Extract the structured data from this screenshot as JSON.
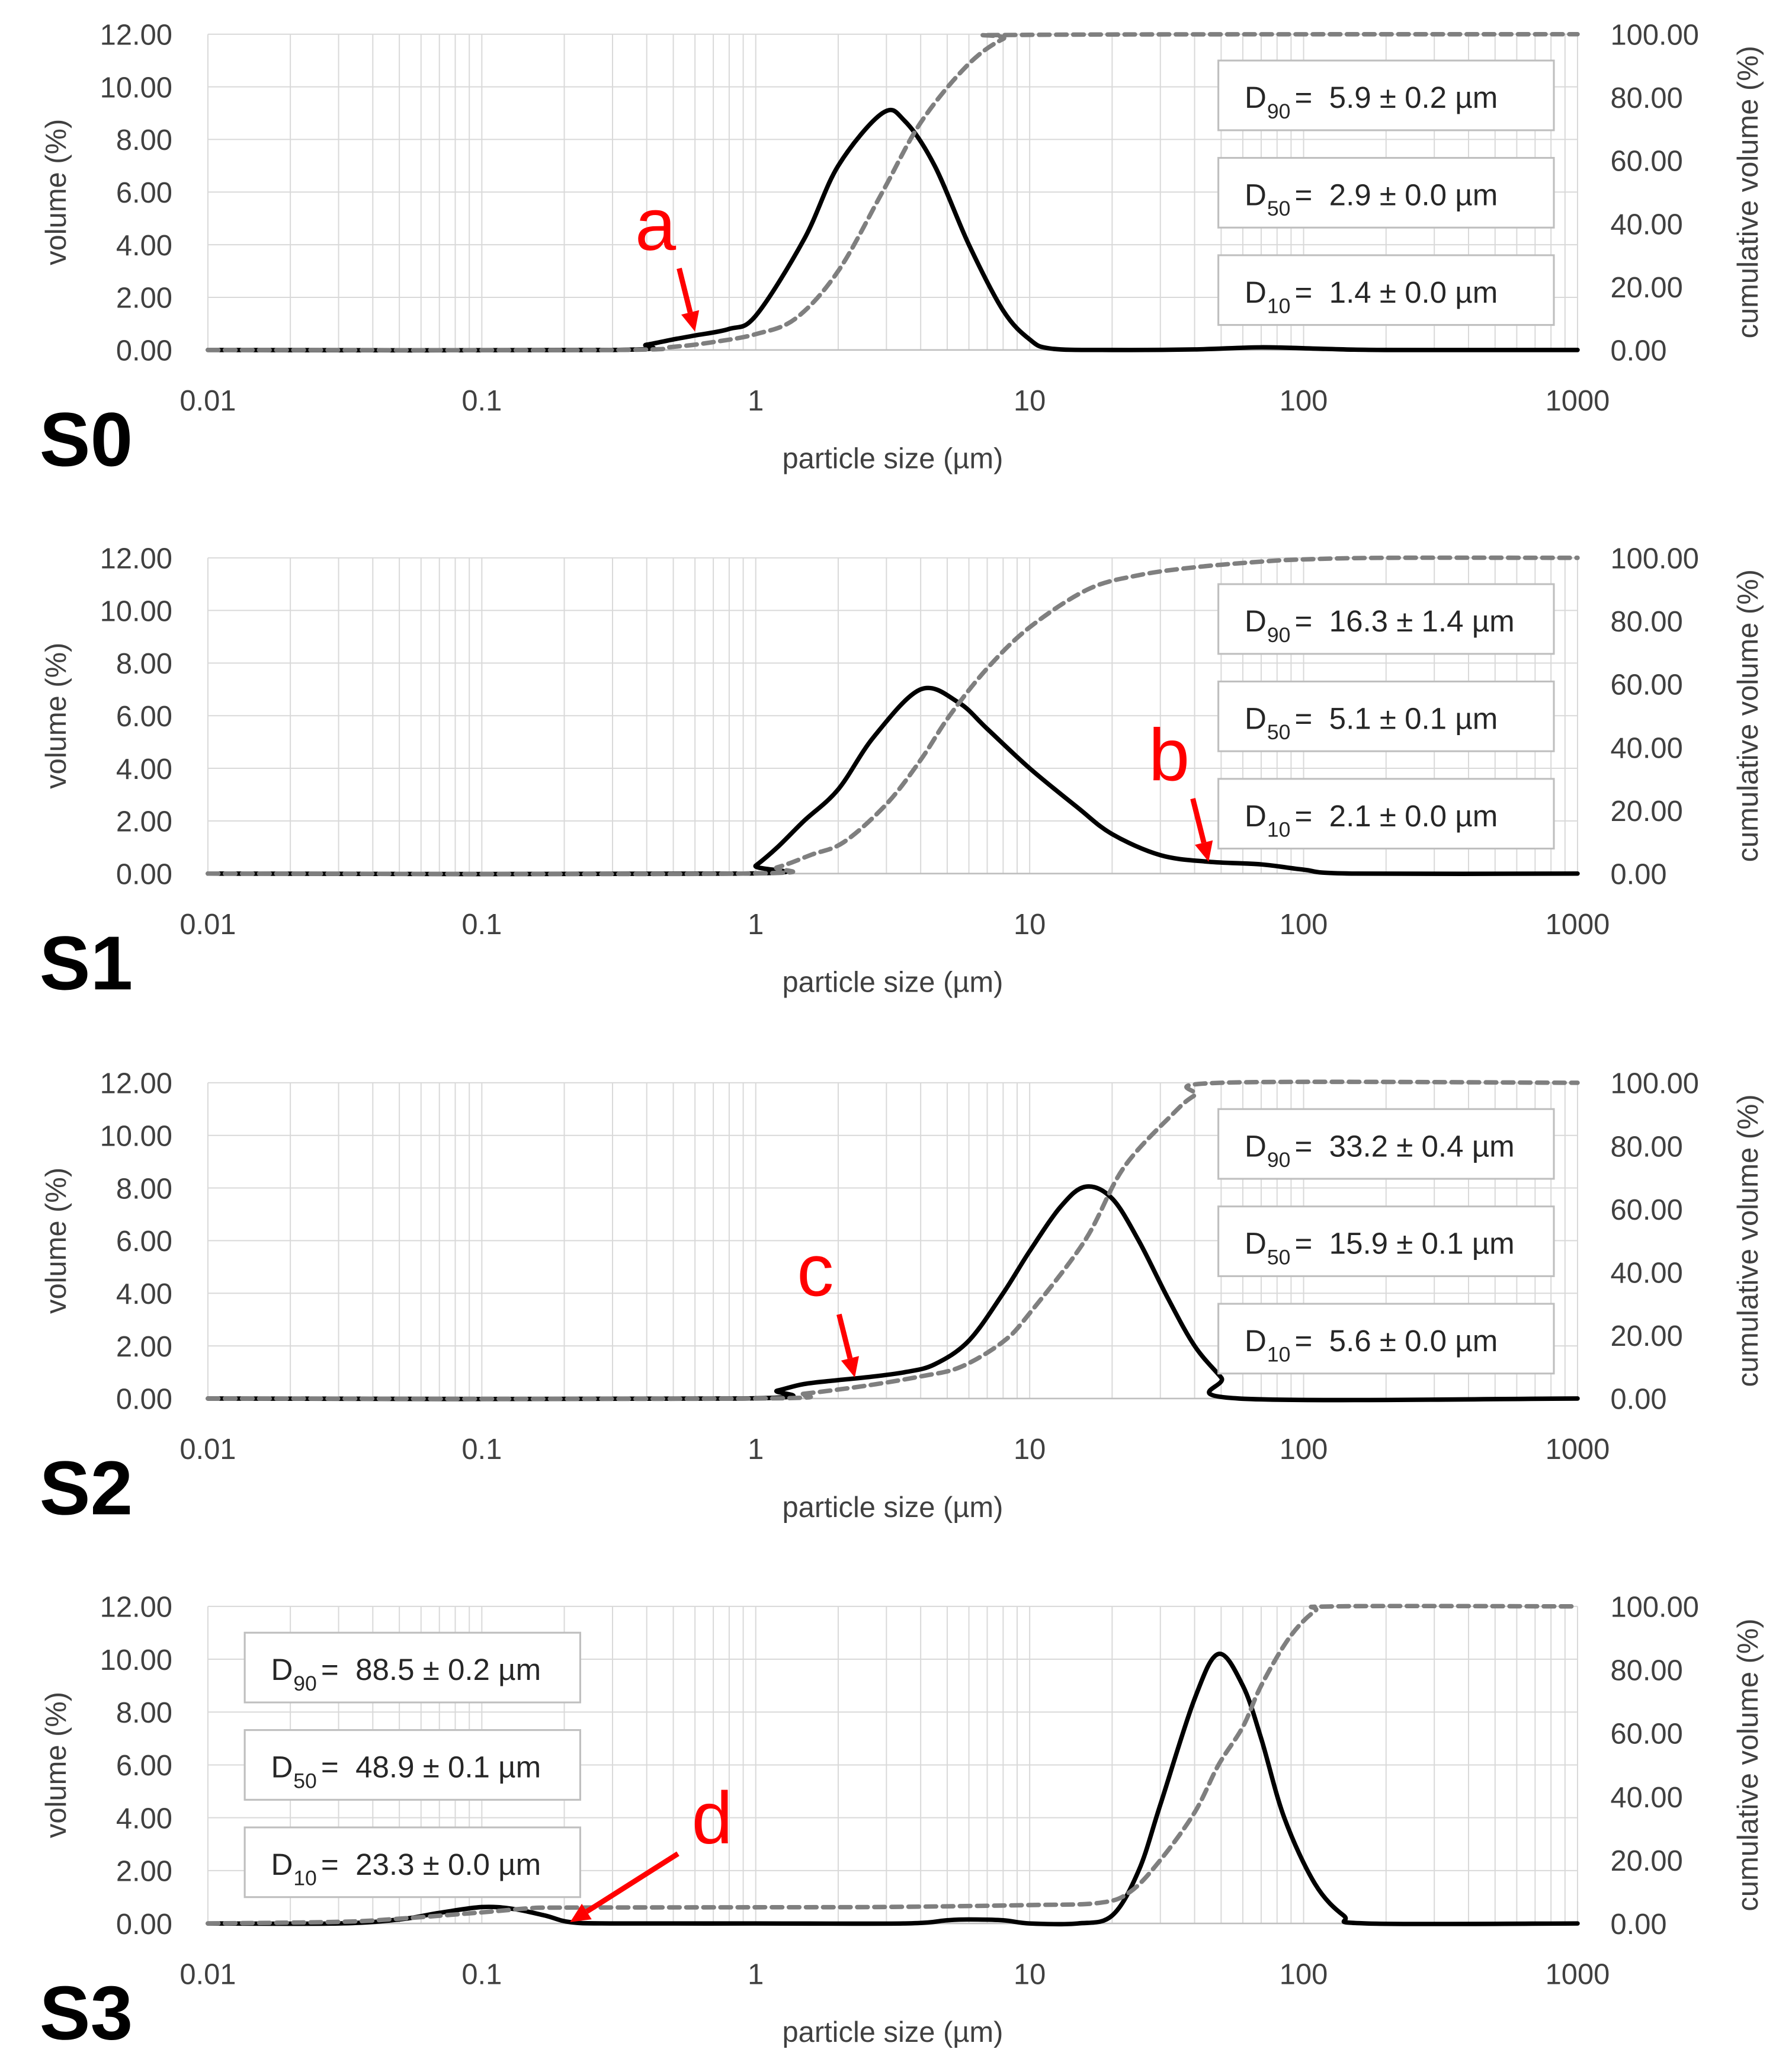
{
  "chart_data": [
    {
      "type": "line",
      "panel_label": "S0",
      "xlabel": "particle size (µm)",
      "ylabel_left": "volume (%)",
      "ylabel_right": "cumulative volume (%)",
      "x_scale": "log",
      "xlim": [
        0.01,
        1000
      ],
      "ylim_left": [
        0,
        12
      ],
      "ylim_right": [
        0,
        100
      ],
      "x_ticks": [
        "0.01",
        "0.1",
        "1",
        "10",
        "100",
        "1000"
      ],
      "y_ticks_left": [
        "0.00",
        "2.00",
        "4.00",
        "6.00",
        "8.00",
        "10.00",
        "12.00"
      ],
      "y_ticks_right": [
        "0.00",
        "20.00",
        "40.00",
        "60.00",
        "80.00",
        "100.00"
      ],
      "grid": true,
      "stats_placement": "right",
      "stats": [
        {
          "sub": "90",
          "text": "=  5.9 ± 0.2 µm"
        },
        {
          "sub": "50",
          "text": "=  2.9 ± 0.0 µm"
        },
        {
          "sub": "10",
          "text": "=  1.4 ± 0.0 µm"
        }
      ],
      "annotation": {
        "label": "a",
        "x": 0.6,
        "y": 0.7
      },
      "series": [
        {
          "style": "solid",
          "axis": "left",
          "x": [
            0.01,
            0.3,
            0.4,
            0.5,
            0.6,
            0.8,
            1.0,
            1.5,
            2.0,
            2.9,
            3.5,
            4.5,
            6.0,
            8.0,
            10.0,
            12.0,
            20.0,
            40.0,
            70.0,
            120.0,
            200.0,
            1000.0
          ],
          "y": [
            0,
            0,
            0.2,
            0.4,
            0.55,
            0.8,
            1.3,
            4.2,
            7.0,
            9.0,
            8.7,
            7.0,
            4.0,
            1.5,
            0.4,
            0.05,
            0,
            0.02,
            0.1,
            0.04,
            0,
            0
          ]
        },
        {
          "style": "dashed",
          "axis": "right",
          "x": [
            0.01,
            0.3,
            0.5,
            0.7,
            1.0,
            1.4,
            2.0,
            2.9,
            4.0,
            5.9,
            8.0,
            10.0,
            1000.0
          ],
          "y": [
            0,
            0,
            1.0,
            2.5,
            5.0,
            10.0,
            25.0,
            50.0,
            72.0,
            90.0,
            98.5,
            99.8,
            100
          ]
        }
      ]
    },
    {
      "type": "line",
      "panel_label": "S1",
      "xlabel": "particle size (µm)",
      "ylabel_left": "volume (%)",
      "ylabel_right": "cumulative volume (%)",
      "x_scale": "log",
      "xlim": [
        0.01,
        1000
      ],
      "ylim_left": [
        0,
        12
      ],
      "ylim_right": [
        0,
        100
      ],
      "x_ticks": [
        "0.01",
        "0.1",
        "1",
        "10",
        "100",
        "1000"
      ],
      "y_ticks_left": [
        "0.00",
        "2.00",
        "4.00",
        "6.00",
        "8.00",
        "10.00",
        "12.00"
      ],
      "y_ticks_right": [
        "0.00",
        "20.00",
        "40.00",
        "60.00",
        "80.00",
        "100.00"
      ],
      "grid": true,
      "stats_placement": "right",
      "stats": [
        {
          "sub": "90",
          "text": "=  16.3 ± 1.4 µm"
        },
        {
          "sub": "50",
          "text": "=  5.1 ± 0.1 µm"
        },
        {
          "sub": "10",
          "text": "=  2.1 ± 0.0 µm"
        }
      ],
      "annotation": {
        "label": "b",
        "x": 45,
        "y": 0.45
      },
      "series": [
        {
          "style": "solid",
          "axis": "left",
          "x": [
            0.01,
            0.9,
            1.0,
            1.2,
            1.5,
            2.0,
            2.7,
            4.0,
            5.5,
            7.0,
            10.0,
            15.0,
            20.0,
            30.0,
            45.0,
            70.0,
            100.0,
            150.0,
            1000.0
          ],
          "y": [
            0,
            0,
            0.3,
            1.0,
            2.0,
            3.2,
            5.2,
            7.0,
            6.5,
            5.5,
            4.0,
            2.5,
            1.5,
            0.7,
            0.45,
            0.35,
            0.15,
            0,
            0
          ]
        },
        {
          "style": "dashed",
          "axis": "right",
          "x": [
            0.01,
            0.9,
            1.2,
            1.6,
            2.1,
            3.0,
            4.0,
            5.1,
            7.0,
            10.0,
            16.3,
            25.0,
            40.0,
            70.0,
            100.0,
            200.0,
            1000.0
          ],
          "y": [
            0,
            0,
            2.0,
            6.0,
            10.0,
            22.0,
            36.0,
            50.0,
            65.0,
            78.0,
            90.0,
            94.5,
            97.0,
            98.8,
            99.5,
            100,
            100
          ]
        }
      ]
    },
    {
      "type": "line",
      "panel_label": "S2",
      "xlabel": "particle size (µm)",
      "ylabel_left": "volume (%)",
      "ylabel_right": "cumulative volume (%)",
      "x_scale": "log",
      "xlim": [
        0.01,
        1000
      ],
      "ylim_left": [
        0,
        12
      ],
      "ylim_right": [
        0,
        100
      ],
      "x_ticks": [
        "0.01",
        "0.1",
        "1",
        "10",
        "100",
        "1000"
      ],
      "y_ticks_left": [
        "0.00",
        "2.00",
        "4.00",
        "6.00",
        "8.00",
        "10.00",
        "12.00"
      ],
      "y_ticks_right": [
        "0.00",
        "20.00",
        "40.00",
        "60.00",
        "80.00",
        "100.00"
      ],
      "grid": true,
      "stats_placement": "right",
      "stats": [
        {
          "sub": "90",
          "text": "=  33.2 ± 0.4 µm"
        },
        {
          "sub": "50",
          "text": "=  15.9 ± 0.1 µm"
        },
        {
          "sub": "10",
          "text": "=  5.6 ± 0.0 µm"
        }
      ],
      "annotation": {
        "label": "c",
        "x": 2.3,
        "y": 0.8
      },
      "series": [
        {
          "style": "solid",
          "axis": "left",
          "x": [
            0.01,
            0.9,
            1.2,
            1.5,
            2.0,
            2.5,
            3.5,
            4.5,
            6.0,
            8.0,
            10.0,
            13.0,
            16.0,
            20.0,
            25.0,
            32.0,
            40.0,
            50.0,
            58.0,
            1000.0
          ],
          "y": [
            0,
            0,
            0.3,
            0.55,
            0.7,
            0.8,
            1.0,
            1.3,
            2.2,
            4.0,
            5.6,
            7.3,
            8.05,
            7.6,
            6.0,
            3.8,
            2.0,
            0.8,
            0,
            0
          ]
        },
        {
          "style": "dashed",
          "axis": "right",
          "x": [
            0.01,
            1.0,
            1.5,
            2.5,
            4.0,
            5.6,
            8.0,
            10.0,
            15.9,
            22.0,
            33.2,
            40.0,
            50.0,
            1000.0
          ],
          "y": [
            0,
            0,
            1.5,
            4.0,
            7.0,
            10.0,
            18.0,
            27.0,
            50.0,
            73.0,
            90.0,
            96.0,
            100,
            100
          ]
        }
      ]
    },
    {
      "type": "line",
      "panel_label": "S3",
      "xlabel": "particle size (µm)",
      "ylabel_left": "volume (%)",
      "ylabel_right": "cumulative volume (%)",
      "x_scale": "log",
      "xlim": [
        0.01,
        1000
      ],
      "ylim_left": [
        0,
        12
      ],
      "ylim_right": [
        0,
        100
      ],
      "x_ticks": [
        "0.01",
        "0.1",
        "1",
        "10",
        "100",
        "1000"
      ],
      "y_ticks_left": [
        "0.00",
        "2.00",
        "4.00",
        "6.00",
        "8.00",
        "10.00",
        "12.00"
      ],
      "y_ticks_right": [
        "0.00",
        "20.00",
        "40.00",
        "60.00",
        "80.00",
        "100.00"
      ],
      "grid": true,
      "stats_placement": "left",
      "stats": [
        {
          "sub": "90",
          "text": "=  88.5 ± 0.2 µm"
        },
        {
          "sub": "50",
          "text": "=  48.9 ± 0.1 µm"
        },
        {
          "sub": "10",
          "text": "=  23.3 ± 0.0 µm"
        }
      ],
      "annotation": {
        "label": "d",
        "x": 0.21,
        "y": 0.05
      },
      "series": [
        {
          "style": "solid",
          "axis": "left",
          "x": [
            0.01,
            0.03,
            0.05,
            0.07,
            0.1,
            0.13,
            0.17,
            0.21,
            0.3,
            1.0,
            3.5,
            5.0,
            6.0,
            8.0,
            10.0,
            15.0,
            20.0,
            25.0,
            30.0,
            40.0,
            48.9,
            60.0,
            70.0,
            85.0,
            110.0,
            140.0,
            170.0,
            1000.0
          ],
          "y": [
            0,
            0,
            0.15,
            0.4,
            0.62,
            0.55,
            0.3,
            0.05,
            0,
            0,
            0,
            0.12,
            0.15,
            0.12,
            0,
            0,
            0.3,
            2.0,
            4.5,
            8.5,
            10.2,
            9.0,
            7.0,
            4.0,
            1.5,
            0.3,
            0,
            0
          ]
        },
        {
          "style": "dashed",
          "axis": "right",
          "x": [
            0.01,
            0.03,
            0.05,
            0.1,
            0.15,
            0.2,
            1.0,
            3.0,
            10.0,
            18.0,
            23.3,
            30.0,
            40.0,
            48.9,
            60.0,
            70.0,
            88.5,
            110.0,
            130.0,
            1000.0
          ],
          "y": [
            0,
            0.5,
            1.5,
            3.5,
            4.8,
            5.0,
            5.1,
            5.2,
            5.8,
            6.5,
            10.0,
            20.0,
            35.0,
            50.0,
            62.0,
            75.0,
            90.0,
            98.5,
            100,
            100
          ]
        }
      ]
    }
  ]
}
